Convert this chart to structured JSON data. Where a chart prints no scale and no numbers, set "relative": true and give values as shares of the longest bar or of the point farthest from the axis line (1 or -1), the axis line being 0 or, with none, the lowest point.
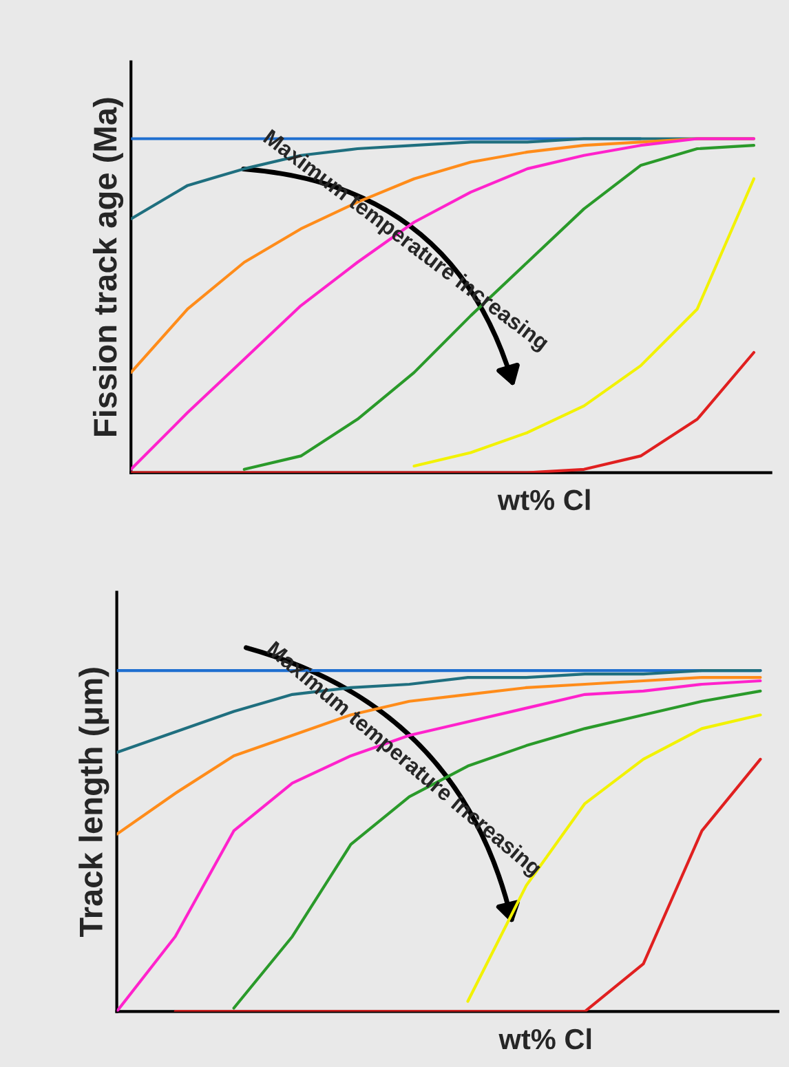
{
  "chart_data": [
    {
      "type": "line",
      "relative": true,
      "ylabel": "Fission track age (Ma)",
      "xlabel": "wt% Cl",
      "categories": [
        null,
        null,
        null,
        null,
        null,
        null,
        null,
        null,
        null,
        null,
        null,
        null
      ],
      "legend": false,
      "marker": "none",
      "line_style": "solid",
      "annotations": [
        "Maximum temperature increasing"
      ],
      "series": [
        {
          "color": "#1f6fd0",
          "values": [
            1,
            1,
            1,
            1,
            1,
            1,
            1,
            1,
            1,
            1,
            null,
            null
          ]
        },
        {
          "color": "#1f6f7f",
          "values": [
            0.76,
            0.86,
            0.91,
            0.95,
            0.97,
            0.98,
            0.99,
            0.99,
            1,
            1,
            1,
            1
          ]
        },
        {
          "color": "#ff8c1a",
          "values": [
            0.3,
            0.49,
            0.63,
            0.73,
            0.81,
            0.88,
            0.93,
            0.96,
            0.98,
            0.99,
            1,
            1
          ]
        },
        {
          "color": "#ff22cc",
          "values": [
            0.01,
            0.18,
            0.34,
            0.5,
            0.63,
            0.75,
            0.84,
            0.91,
            0.95,
            0.98,
            1,
            1
          ]
        },
        {
          "color": "#2a9a2a",
          "values": [
            null,
            null,
            0.01,
            0.05,
            0.16,
            0.3,
            0.47,
            0.63,
            0.79,
            0.92,
            0.97,
            0.98
          ]
        },
        {
          "color": "#f2f200",
          "values": [
            null,
            null,
            null,
            null,
            null,
            0.02,
            0.06,
            0.12,
            0.2,
            0.32,
            0.49,
            0.88
          ]
        },
        {
          "color": "#e02020",
          "values": [
            0,
            0,
            0,
            0,
            0,
            0,
            0,
            0,
            0.01,
            0.05,
            0.16,
            0.36
          ]
        }
      ]
    },
    {
      "type": "line",
      "relative": true,
      "ylabel": "Track length (μm)",
      "xlabel": "wt% Cl",
      "categories": [
        null,
        null,
        null,
        null,
        null,
        null,
        null,
        null,
        null,
        null,
        null,
        null
      ],
      "legend": false,
      "marker": "none",
      "line_style": "solid",
      "annotations": [
        "Maximum temperature increasing"
      ],
      "series": [
        {
          "color": "#1f6fd0",
          "values": [
            1,
            1,
            1,
            1,
            1,
            1,
            1,
            1,
            1,
            1,
            1,
            1
          ]
        },
        {
          "color": "#1f6f7f",
          "values": [
            0.76,
            0.82,
            0.88,
            0.93,
            0.95,
            0.96,
            0.98,
            0.98,
            0.99,
            0.99,
            1,
            1
          ]
        },
        {
          "color": "#ff8c1a",
          "values": [
            0.52,
            0.64,
            0.75,
            0.81,
            0.87,
            0.91,
            0.93,
            0.95,
            0.96,
            0.97,
            0.98,
            0.98
          ]
        },
        {
          "color": "#ff22cc",
          "values": [
            0,
            0.22,
            0.53,
            0.67,
            0.75,
            0.81,
            0.85,
            0.89,
            0.93,
            0.94,
            0.96,
            0.97
          ]
        },
        {
          "color": "#2a9a2a",
          "values": [
            null,
            null,
            0.01,
            0.22,
            0.49,
            0.63,
            0.72,
            0.78,
            0.83,
            0.87,
            0.91,
            0.94
          ]
        },
        {
          "color": "#f2f200",
          "values": [
            null,
            null,
            null,
            null,
            null,
            null,
            0.03,
            0.37,
            0.61,
            0.74,
            0.83,
            0.87
          ]
        },
        {
          "color": "#e02020",
          "values": [
            null,
            0,
            0,
            0,
            0,
            0,
            0,
            0,
            0,
            0.14,
            0.53,
            0.74
          ]
        }
      ]
    }
  ]
}
